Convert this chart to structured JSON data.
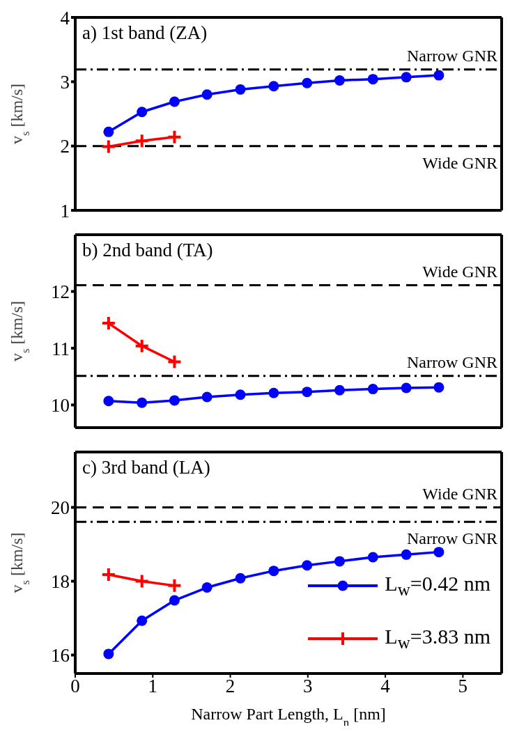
{
  "chart_data": [
    {
      "type": "line",
      "title": "a)  1st band (ZA)",
      "ylabel": "v$_{s}$ [km/s]",
      "xlim": [
        0,
        5.5
      ],
      "xticks": [
        0,
        1,
        2,
        3,
        4,
        5
      ],
      "ylim": [
        1,
        4
      ],
      "yticks": [
        1,
        2,
        3,
        4
      ],
      "tick_labels": "y",
      "series": [
        {
          "color": "#0000ff",
          "marker": "circle",
          "x": [
            0.43,
            0.86,
            1.28,
            1.7,
            2.13,
            2.56,
            2.99,
            3.41,
            3.84,
            4.27,
            4.69
          ],
          "values": [
            2.22,
            2.53,
            2.69,
            2.8,
            2.88,
            2.93,
            2.98,
            3.02,
            3.04,
            3.07,
            3.1
          ]
        },
        {
          "color": "#ff0000",
          "marker": "cross",
          "x": [
            0.43,
            0.86,
            1.28
          ],
          "values": [
            1.99,
            2.08,
            2.14
          ]
        }
      ],
      "ref_lines": [
        {
          "axis": "y",
          "value": 3.19,
          "label": "Narrow GNR",
          "line_style": "dashdot",
          "color": "#000000"
        },
        {
          "axis": "y",
          "value": 2.0,
          "label": "Wide GNR",
          "line_style": "dashed",
          "color": "#000000"
        }
      ]
    },
    {
      "type": "line",
      "title": "b)  2nd band (TA)",
      "ylabel": "v$_{s}$ [km/s]",
      "xlim": [
        0,
        5.5
      ],
      "xticks": [
        0,
        1,
        2,
        3,
        4,
        5
      ],
      "ylim": [
        9.6,
        13
      ],
      "yticks": [
        10,
        11,
        12
      ],
      "tick_labels": "y",
      "series": [
        {
          "color": "#0000ff",
          "marker": "circle",
          "x": [
            0.43,
            0.86,
            1.28,
            1.7,
            2.13,
            2.56,
            2.99,
            3.41,
            3.84,
            4.27,
            4.69
          ],
          "values": [
            10.07,
            10.04,
            10.08,
            10.14,
            10.18,
            10.21,
            10.23,
            10.26,
            10.28,
            10.3,
            10.31
          ]
        },
        {
          "color": "#ff0000",
          "marker": "cross",
          "x": [
            0.43,
            0.86,
            1.28
          ],
          "values": [
            11.44,
            11.04,
            10.76
          ]
        }
      ],
      "ref_lines": [
        {
          "axis": "y",
          "value": 12.11,
          "label": "Wide GNR",
          "line_style": "dashed",
          "color": "#000000"
        },
        {
          "axis": "y",
          "value": 10.51,
          "label": "Narrow GNR",
          "line_style": "dashdot",
          "color": "#000000"
        }
      ]
    },
    {
      "type": "line",
      "title": "c)  3rd band (LA)",
      "ylabel": "v$_{s}$ [km/s]",
      "xlabel": "Narrow Part Length, L$_{n}$ [nm]",
      "xlim": [
        0,
        5.5
      ],
      "xticks": [
        0,
        1,
        2,
        3,
        4,
        5
      ],
      "ylim": [
        15.5,
        21.5
      ],
      "yticks": [
        16,
        18,
        20
      ],
      "legend": "bottom right",
      "series": [
        {
          "name": "L$_{w}$=0.42 nm",
          "color": "#0000ff",
          "marker": "circle",
          "x": [
            0.43,
            0.86,
            1.28,
            1.7,
            2.13,
            2.56,
            2.99,
            3.41,
            3.84,
            4.27,
            4.69
          ],
          "values": [
            16.03,
            16.93,
            17.48,
            17.83,
            18.08,
            18.28,
            18.43,
            18.54,
            18.65,
            18.72,
            18.79
          ]
        },
        {
          "name": "L$_{w}$=3.83 nm",
          "color": "#ff0000",
          "marker": "cross",
          "x": [
            0.43,
            0.86,
            1.28
          ],
          "values": [
            18.18,
            18.0,
            17.88
          ]
        }
      ],
      "ref_lines": [
        {
          "axis": "y",
          "value": 20.0,
          "label": "Wide GNR",
          "line_style": "dashed",
          "color": "#000000"
        },
        {
          "axis": "y",
          "value": 19.61,
          "label": "Narrow GNR",
          "line_style": "dashdot",
          "color": "#000000"
        }
      ]
    }
  ]
}
